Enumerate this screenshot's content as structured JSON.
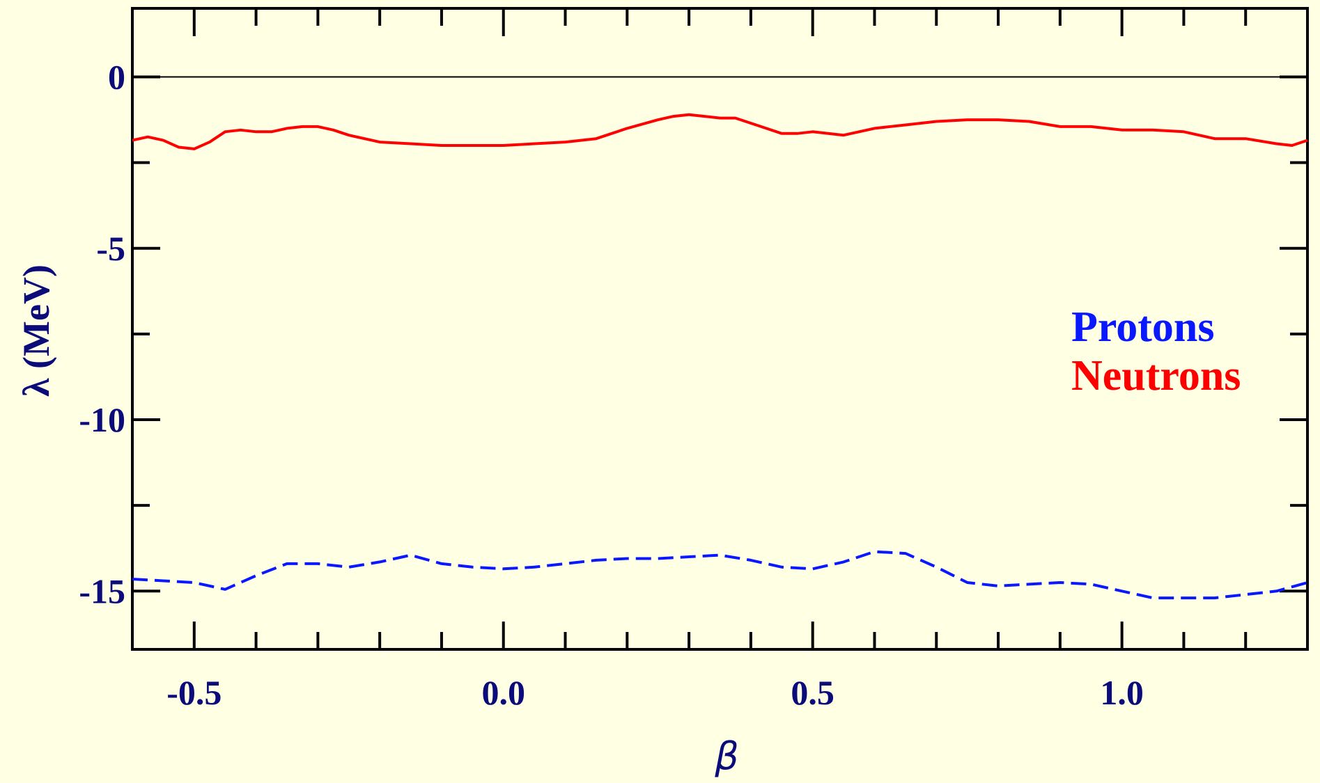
{
  "chart_data": {
    "type": "line",
    "xlabel": "β",
    "ylabel": "λ (MeV)",
    "xlim": [
      -0.6,
      1.3
    ],
    "ylim": [
      -16.7,
      2.0
    ],
    "x_ticks": [
      -0.5,
      0.0,
      0.5,
      1.0
    ],
    "x_tick_labels": [
      "-0.5",
      "0.0",
      "0.5",
      "1.0"
    ],
    "y_ticks": [
      0,
      -5,
      -10,
      -15
    ],
    "y_tick_labels": [
      "0",
      "-5",
      "-10",
      "-15"
    ],
    "reference_line_y": 0,
    "legend_position": "right",
    "series": [
      {
        "name": "Neutrons",
        "color": "#ff0000",
        "style": "solid",
        "x": [
          -0.6,
          -0.575,
          -0.55,
          -0.525,
          -0.5,
          -0.475,
          -0.45,
          -0.425,
          -0.4,
          -0.375,
          -0.35,
          -0.325,
          -0.3,
          -0.275,
          -0.25,
          -0.2,
          -0.15,
          -0.1,
          -0.05,
          0.0,
          0.05,
          0.1,
          0.15,
          0.2,
          0.25,
          0.275,
          0.3,
          0.325,
          0.35,
          0.375,
          0.4,
          0.425,
          0.45,
          0.475,
          0.5,
          0.55,
          0.6,
          0.65,
          0.7,
          0.75,
          0.8,
          0.85,
          0.9,
          0.95,
          1.0,
          1.05,
          1.1,
          1.15,
          1.2,
          1.25,
          1.275,
          1.3
        ],
        "y": [
          -1.85,
          -1.75,
          -1.85,
          -2.05,
          -2.1,
          -1.9,
          -1.6,
          -1.55,
          -1.6,
          -1.6,
          -1.5,
          -1.45,
          -1.45,
          -1.55,
          -1.7,
          -1.9,
          -1.95,
          -2.0,
          -2.0,
          -2.0,
          -1.95,
          -1.9,
          -1.8,
          -1.5,
          -1.25,
          -1.15,
          -1.1,
          -1.15,
          -1.2,
          -1.2,
          -1.35,
          -1.5,
          -1.65,
          -1.65,
          -1.6,
          -1.7,
          -1.5,
          -1.4,
          -1.3,
          -1.25,
          -1.25,
          -1.3,
          -1.45,
          -1.45,
          -1.55,
          -1.55,
          -1.6,
          -1.8,
          -1.8,
          -1.95,
          -2.0,
          -1.85
        ]
      },
      {
        "name": "Protons",
        "color": "#0a18ff",
        "style": "dashed",
        "x": [
          -0.6,
          -0.55,
          -0.5,
          -0.45,
          -0.4,
          -0.35,
          -0.3,
          -0.25,
          -0.2,
          -0.15,
          -0.1,
          -0.05,
          0.0,
          0.05,
          0.1,
          0.15,
          0.2,
          0.25,
          0.3,
          0.35,
          0.4,
          0.45,
          0.5,
          0.55,
          0.6,
          0.65,
          0.7,
          0.75,
          0.8,
          0.85,
          0.9,
          0.95,
          1.0,
          1.05,
          1.1,
          1.15,
          1.2,
          1.25,
          1.3
        ],
        "y": [
          -14.65,
          -14.7,
          -14.75,
          -14.95,
          -14.55,
          -14.2,
          -14.2,
          -14.3,
          -14.15,
          -13.95,
          -14.2,
          -14.3,
          -14.35,
          -14.3,
          -14.2,
          -14.1,
          -14.05,
          -14.05,
          -14.0,
          -13.95,
          -14.1,
          -14.3,
          -14.35,
          -14.15,
          -13.85,
          -13.9,
          -14.3,
          -14.75,
          -14.85,
          -14.8,
          -14.75,
          -14.8,
          -15.0,
          -15.2,
          -15.2,
          -15.2,
          -15.1,
          -15.0,
          -14.75
        ]
      }
    ]
  }
}
